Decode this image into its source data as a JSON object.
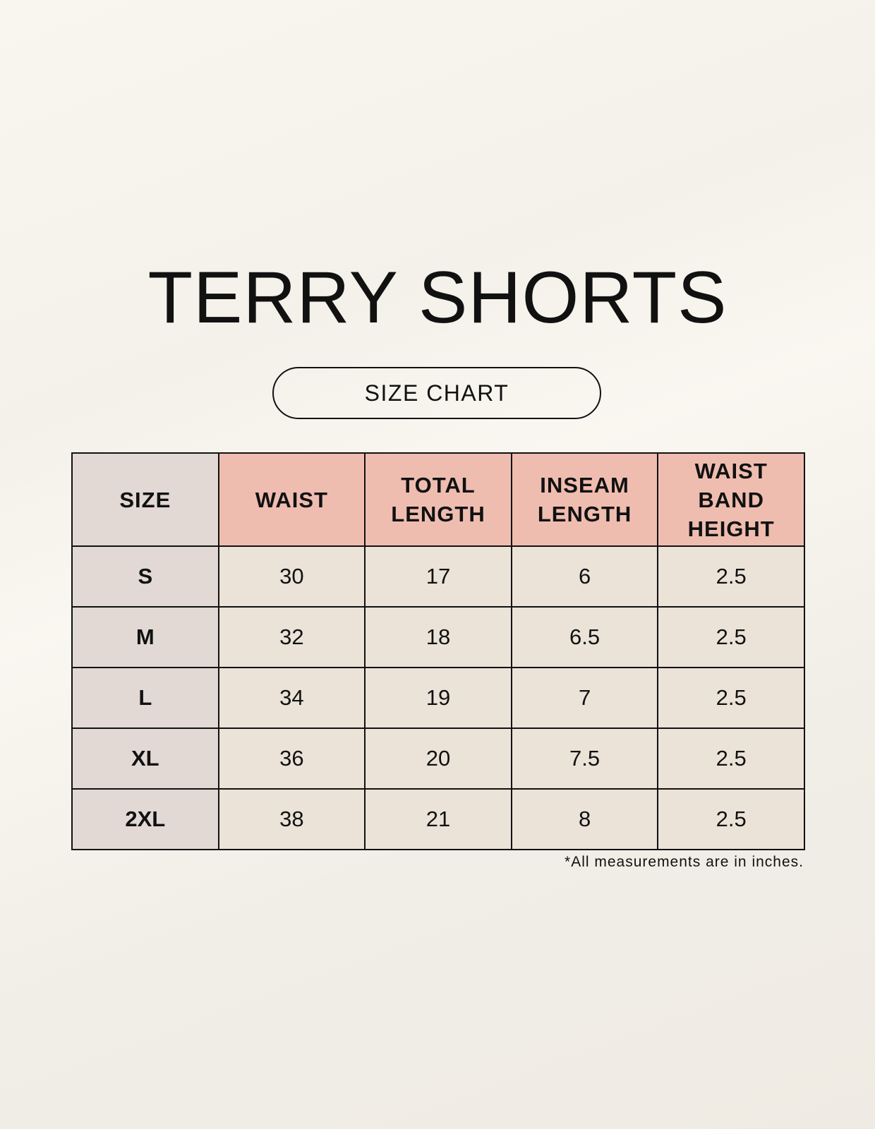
{
  "title": "TERRY SHORTS",
  "subtitle": "SIZE CHART",
  "colors": {
    "header_accent": "#efbdb0",
    "size_column": "#e2d9d4",
    "cell": "#ebe2d8"
  },
  "table": {
    "headers": [
      "SIZE",
      "WAIST",
      "TOTAL LENGTH",
      "INSEAM LENGTH",
      "WAIST BAND HEIGHT"
    ],
    "rows": [
      [
        "S",
        "30",
        "17",
        "6",
        "2.5"
      ],
      [
        "M",
        "32",
        "18",
        "6.5",
        "2.5"
      ],
      [
        "L",
        "34",
        "19",
        "7",
        "2.5"
      ],
      [
        "XL",
        "36",
        "20",
        "7.5",
        "2.5"
      ],
      [
        "2XL",
        "38",
        "21",
        "8",
        "2.5"
      ]
    ]
  },
  "footnote": "*All measurements are in inches."
}
